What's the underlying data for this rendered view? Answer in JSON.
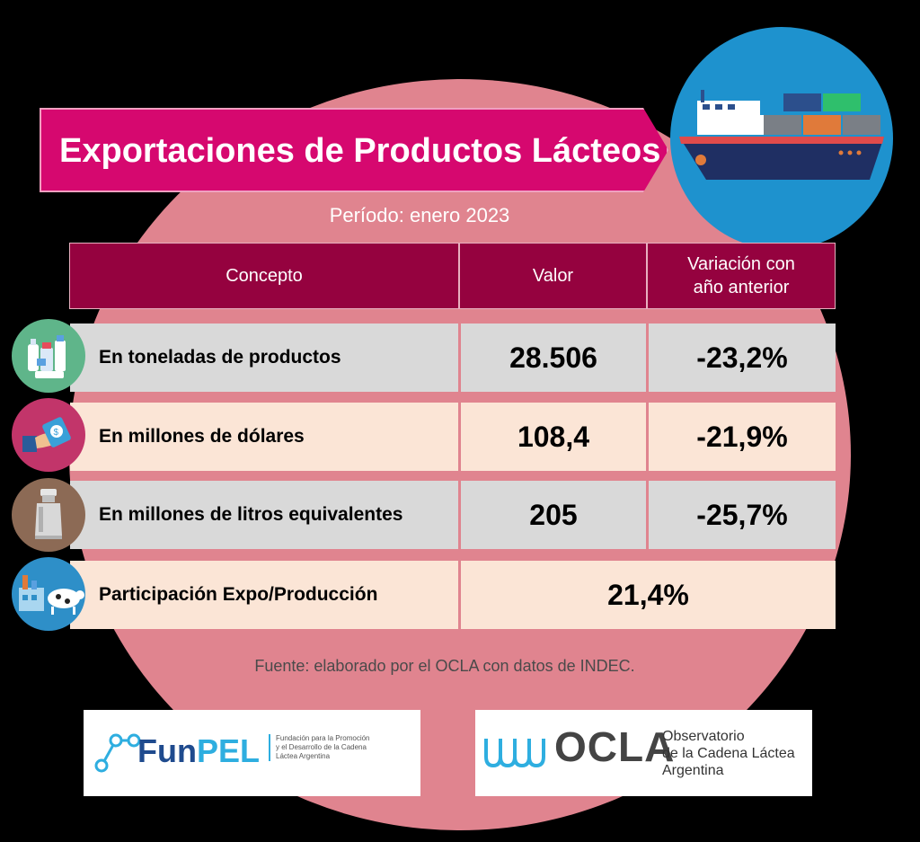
{
  "title": "Exportaciones de Productos Lácteos",
  "period": "Período: enero 2023",
  "table": {
    "headers": {
      "concept": "Concepto",
      "value": "Valor",
      "variation_line1": "Variación con",
      "variation_line2": "año anterior"
    },
    "rows": [
      {
        "concept": "En toneladas de productos",
        "value": "28.506",
        "variation": "-23,2%",
        "icon": "dairy-products-icon"
      },
      {
        "concept": "En millones de dólares",
        "value": "108,4",
        "variation": "-21,9%",
        "icon": "money-hand-icon"
      },
      {
        "concept": "En millones de litros equivalentes",
        "value": "205",
        "variation": "-25,7%",
        "icon": "milk-can-icon"
      },
      {
        "concept": "Participación Expo/Producción",
        "value": "21,4%",
        "icon": "factory-cow-icon"
      }
    ]
  },
  "source": "Fuente: elaborado por el OCLA con datos de INDEC.",
  "logos": {
    "funpel": {
      "name_part1": "Fun",
      "name_part2": "PEL",
      "subtitle_line1": "Fundación para la Promoción",
      "subtitle_line2": "y el Desarrollo de la Cadena",
      "subtitle_line3": "Láctea Argentina"
    },
    "ocla": {
      "name": "OCLA",
      "subtitle_line1": "Observatorio",
      "subtitle_line2": "de la Cadena Láctea",
      "subtitle_line3": "Argentina"
    }
  },
  "colors": {
    "background": "#000000",
    "circle": "#e0848f",
    "title_banner": "#d6086f",
    "header": "#95023f",
    "row_gray": "#d9d9d9",
    "row_peach": "#fbe5d6",
    "ship_circle": "#1e92ce"
  }
}
